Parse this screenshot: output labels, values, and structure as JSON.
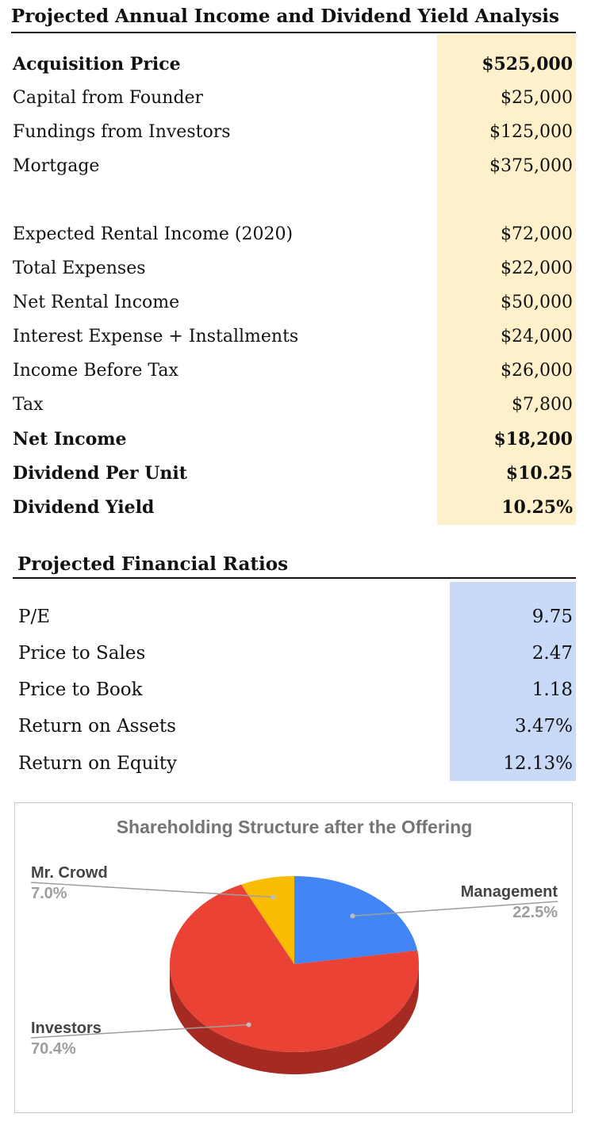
{
  "income_table": {
    "title": "Projected Annual Income and Dividend Yield Analysis",
    "rows": [
      {
        "label": "Acquisition Price",
        "value": "$525,000",
        "bold": true
      },
      {
        "label": "Capital from Founder",
        "value": "$25,000",
        "bold": false
      },
      {
        "label": "Fundings from Investors",
        "value": "$125,000",
        "bold": false
      },
      {
        "label": "Mortgage",
        "value": "$375,000",
        "bold": false
      },
      {
        "label": "Expected Rental Income (2020)",
        "value": "$72,000",
        "bold": false
      },
      {
        "label": "Total Expenses",
        "value": "$22,000",
        "bold": false
      },
      {
        "label": "Net Rental Income",
        "value": "$50,000",
        "bold": false
      },
      {
        "label": "Interest Expense + Installments",
        "value": "$24,000",
        "bold": false
      },
      {
        "label": "Income Before Tax",
        "value": "$26,000",
        "bold": false
      },
      {
        "label": "Tax",
        "value": "$7,800",
        "bold": false
      },
      {
        "label": "Net Income",
        "value": "$18,200",
        "bold": true
      },
      {
        "label": "Dividend Per Unit",
        "value": "$10.25",
        "bold": true
      },
      {
        "label": "Dividend Yield",
        "value": "10.25%",
        "bold": true
      }
    ]
  },
  "ratios_table": {
    "title": "Projected Financial Ratios",
    "rows": [
      {
        "label": "P/E",
        "value": "9.75"
      },
      {
        "label": "Price to Sales",
        "value": "2.47"
      },
      {
        "label": "Price to Book",
        "value": "1.18"
      },
      {
        "label": "Return on Assets",
        "value": "3.47%"
      },
      {
        "label": "Return on Equity",
        "value": "12.13%"
      }
    ]
  },
  "chart_data": {
    "type": "pie",
    "title": "Shareholding Structure after the Offering",
    "three_d": true,
    "labels": [
      "Management",
      "Investors",
      "Mr. Crowd"
    ],
    "values": [
      22.5,
      70.4,
      7.0
    ],
    "value_labels": [
      "22.5%",
      "70.4%",
      "7.0%"
    ],
    "colors": [
      "#4285f4",
      "#ea4335",
      "#fbbc04"
    ],
    "side_colors": [
      "#2a64c8",
      "#a52a22",
      "#c99500"
    ],
    "legend": "callout labels"
  }
}
